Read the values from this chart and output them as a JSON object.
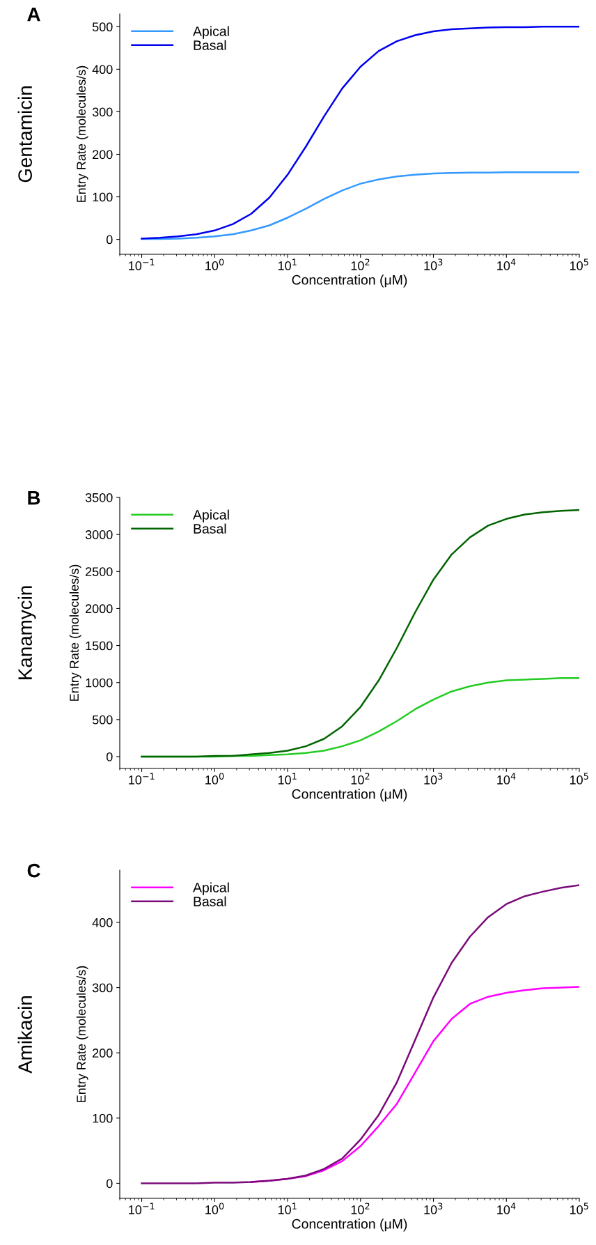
{
  "chart_data": [
    {
      "type": "line",
      "title": "A",
      "subtitle": "Gentamicin",
      "xlabel": "Concentration (μM)",
      "ylabel": "Entry Rate (molecules/s)",
      "log": "x",
      "legend": "top left",
      "grid": false,
      "marker": "none",
      "line_style": "solid",
      "x": [
        0.1,
        0.178,
        0.316,
        0.562,
        1,
        1.78,
        3.16,
        5.62,
        10,
        17.8,
        31.6,
        56.2,
        100,
        178,
        316,
        562,
        1000,
        1778,
        3162,
        5623,
        10000,
        17783,
        31623,
        56234,
        100000
      ],
      "xlim": [
        0.05,
        100000
      ],
      "xticks": [
        {
          "value": 0.1,
          "label": "10$^{−1}$"
        },
        {
          "value": 1,
          "label": "10$^{0}$"
        },
        {
          "value": 10,
          "label": "10$^{1}$"
        },
        {
          "value": 100,
          "label": "10$^{2}$"
        },
        {
          "value": 1000,
          "label": "10$^{3}$"
        },
        {
          "value": 10000,
          "label": "10$^{4}$"
        },
        {
          "value": 100000,
          "label": "10$^{5}$"
        }
      ],
      "ylim": [
        -35,
        530
      ],
      "yticks": [
        0,
        100,
        200,
        300,
        400,
        500
      ],
      "series": [
        {
          "name": "Apical",
          "color": "#3399ff",
          "values": [
            1,
            1,
            2,
            4,
            7,
            12,
            21,
            33,
            51,
            72,
            95,
            115,
            131,
            141,
            148,
            152,
            155,
            156,
            157,
            157,
            158,
            158,
            158,
            158,
            158
          ]
        },
        {
          "name": "Basal",
          "color": "#0000ee",
          "values": [
            2,
            4,
            7,
            12,
            21,
            36,
            60,
            98,
            152,
            218,
            289,
            355,
            406,
            443,
            466,
            480,
            489,
            494,
            496,
            498,
            499,
            499,
            500,
            500,
            500
          ]
        }
      ]
    },
    {
      "type": "line",
      "title": "B",
      "subtitle": "Kanamycin",
      "xlabel": "Concentration (μM)",
      "ylabel": "Entry Rate (molecules/s)",
      "log": "x",
      "legend": "top left",
      "grid": false,
      "marker": "none",
      "line_style": "solid",
      "x": [
        0.1,
        0.178,
        0.316,
        0.562,
        1,
        1.78,
        3.16,
        5.62,
        10,
        17.8,
        31.6,
        56.2,
        100,
        178,
        316,
        562,
        1000,
        1778,
        3162,
        5623,
        10000,
        17783,
        31623,
        56234,
        100000
      ],
      "xlim": [
        0.05,
        100000
      ],
      "xticks": [
        {
          "value": 0.1,
          "label": "10$^{−1}$"
        },
        {
          "value": 1,
          "label": "10$^{0}$"
        },
        {
          "value": 10,
          "label": "10$^{1}$"
        },
        {
          "value": 100,
          "label": "10$^{2}$"
        },
        {
          "value": 1000,
          "label": "10$^{3}$"
        },
        {
          "value": 10000,
          "label": "10$^{4}$"
        },
        {
          "value": 100000,
          "label": "10$^{5}$"
        }
      ],
      "ylim": [
        -160,
        3500
      ],
      "yticks": [
        0,
        500,
        1000,
        1500,
        2000,
        2500,
        3000,
        3500
      ],
      "series": [
        {
          "name": "Apical",
          "color": "#22cc22",
          "values": [
            0,
            0,
            0,
            0,
            0,
            10,
            10,
            20,
            30,
            50,
            80,
            140,
            220,
            340,
            480,
            640,
            770,
            880,
            950,
            1000,
            1030,
            1040,
            1050,
            1060,
            1060
          ]
        },
        {
          "name": "Basal",
          "color": "#006400",
          "values": [
            0,
            0,
            0,
            0,
            10,
            10,
            30,
            50,
            80,
            140,
            240,
            410,
            670,
            1030,
            1470,
            1950,
            2390,
            2730,
            2960,
            3120,
            3210,
            3270,
            3300,
            3320,
            3330
          ]
        }
      ]
    },
    {
      "type": "line",
      "title": "C",
      "subtitle": "Amikacin",
      "xlabel": "Concentration (μM)",
      "ylabel": "Entry Rate (molecules/s)",
      "log": "x",
      "legend": "top left",
      "grid": false,
      "marker": "none",
      "line_style": "solid",
      "x": [
        0.1,
        0.178,
        0.316,
        0.562,
        1,
        1.78,
        3.16,
        5.62,
        10,
        17.8,
        31.6,
        56.2,
        100,
        178,
        316,
        562,
        1000,
        1778,
        3162,
        5623,
        10000,
        17783,
        31623,
        56234,
        100000
      ],
      "xlim": [
        0.05,
        100000
      ],
      "xticks": [
        {
          "value": 0.1,
          "label": "10$^{−1}$"
        },
        {
          "value": 1,
          "label": "10$^{0}$"
        },
        {
          "value": 10,
          "label": "10$^{1}$"
        },
        {
          "value": 100,
          "label": "10$^{2}$"
        },
        {
          "value": 1000,
          "label": "10$^{3}$"
        },
        {
          "value": 10000,
          "label": "10$^{4}$"
        },
        {
          "value": 100000,
          "label": "10$^{5}$"
        }
      ],
      "ylim": [
        -23,
        480
      ],
      "yticks": [
        0,
        100,
        200,
        300,
        400
      ],
      "series": [
        {
          "name": "Apical",
          "color": "#ff00ff",
          "values": [
            null,
            null,
            null,
            null,
            null,
            null,
            2,
            4,
            7,
            11,
            20,
            34,
            57,
            88,
            122,
            170,
            218,
            252,
            275,
            286,
            292,
            296,
            299,
            300,
            301
          ]
        },
        {
          "name": "Basal",
          "color": "#7a0a7a",
          "values": [
            0,
            0,
            0,
            0,
            1,
            1,
            2,
            4,
            7,
            12,
            22,
            38,
            67,
            105,
            155,
            220,
            285,
            338,
            378,
            408,
            428,
            440,
            447,
            453,
            457
          ]
        }
      ]
    }
  ]
}
